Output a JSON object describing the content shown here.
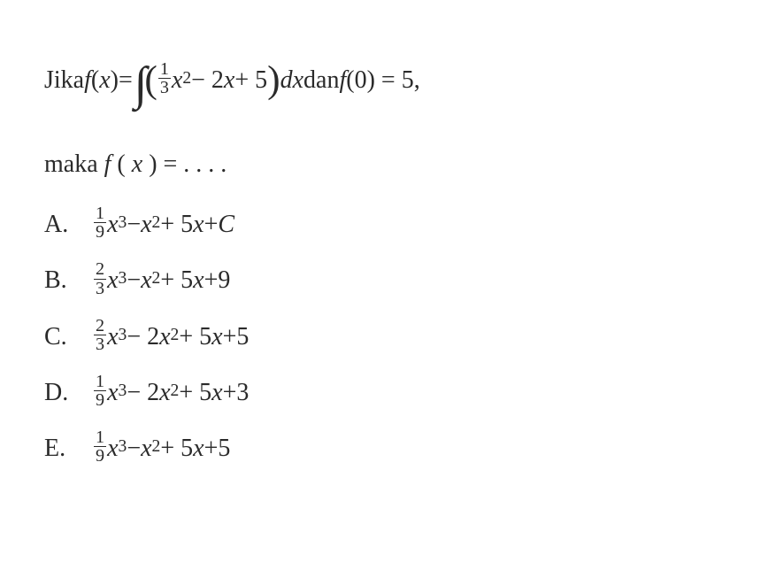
{
  "text_color": "#2a2a2a",
  "background_color": "#ffffff",
  "font_family": "Times New Roman",
  "base_font_size": 28,
  "question": {
    "prefix": "Jika ",
    "func": "f",
    "var": "x",
    "equals": " = ",
    "lparen": "(",
    "rparen": ")",
    "integrand_frac_num": "1",
    "integrand_frac_den": "3",
    "integrand_var": "x",
    "integrand_exp": "2",
    "integrand_rest": " − 2",
    "integrand_x2": "x",
    "integrand_plus5": " + 5",
    "dx_d": " d",
    "dx_x": "x",
    "and": " dan ",
    "cond_func": "f",
    "cond_lp": "(0) = 5,",
    "line2_prefix": "maka ",
    "line2_func": "f",
    "line2_lp": "(",
    "line2_x": "x",
    "line2_rp": ") = . . . ."
  },
  "options": [
    {
      "label": "A.",
      "frac_num": "1",
      "frac_den": "9",
      "term1_var": "x",
      "term1_exp": "3",
      "mid": " − ",
      "term2_var": "x",
      "term2_exp": "2",
      "rest1": " + 5",
      "rest1_var": "x",
      "rest2": " + ",
      "constant": "C",
      "constant_italic": true
    },
    {
      "label": "B.",
      "frac_num": "2",
      "frac_den": "3",
      "term1_var": "x",
      "term1_exp": "3",
      "mid": " − ",
      "term2_var": "x",
      "term2_exp": "2",
      "rest1": " + 5",
      "rest1_var": "x",
      "rest2": " + ",
      "constant": "9",
      "constant_italic": false
    },
    {
      "label": "C.",
      "frac_num": "2",
      "frac_den": "3",
      "term1_var": "x",
      "term1_exp": "3",
      "mid": " − 2",
      "term2_var": "x",
      "term2_exp": "2",
      "rest1": " + 5",
      "rest1_var": "x",
      "rest2": " + ",
      "constant": "5",
      "constant_italic": false
    },
    {
      "label": "D.",
      "frac_num": "1",
      "frac_den": "9",
      "term1_var": "x",
      "term1_exp": "3",
      "mid": " − 2",
      "term2_var": "x",
      "term2_exp": "2",
      "rest1": " + 5",
      "rest1_var": "x",
      "rest2": " + ",
      "constant": "3",
      "constant_italic": false
    },
    {
      "label": "E.",
      "frac_num": "1",
      "frac_den": "9",
      "term1_var": "x",
      "term1_exp": "3",
      "mid": " − ",
      "term2_var": "x",
      "term2_exp": "2",
      "rest1": " + 5",
      "rest1_var": "x",
      "rest2": " + ",
      "constant": "5",
      "constant_italic": false
    }
  ]
}
